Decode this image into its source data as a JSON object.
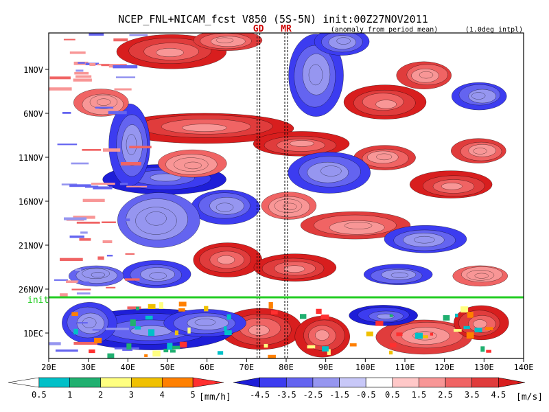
{
  "chart_data": {
    "type": "heatmap",
    "title": "NCEP_FNL+NICAM_fcst V850 (5S-5N) init:00Z27NOV2011",
    "subtitle_left": "(anomaly from period mean)",
    "subtitle_right": "(1.0deg intpl)",
    "markers": [
      {
        "label": "GD",
        "lon": 73,
        "color": "#cc0000"
      },
      {
        "label": "MR",
        "lon": 80,
        "color": "#cc0000"
      }
    ],
    "init_label": "init",
    "init_color": "#22cc22",
    "x": {
      "ticks": [
        "20E",
        "30E",
        "40E",
        "50E",
        "60E",
        "70E",
        "80E",
        "90E",
        "100E",
        "110E",
        "120E",
        "130E",
        "140E"
      ],
      "range": [
        20,
        140
      ]
    },
    "y": {
      "ticks": [
        "1NOV",
        "6NOV",
        "11NOV",
        "16NOV",
        "21NOV",
        "26NOV",
        "1DEC"
      ],
      "range_days": [
        "28OCT2011",
        "5DEC2011"
      ],
      "direction": "time increases downward"
    },
    "precip_colorbar": {
      "unit": "[mm/h]",
      "ticks": [
        "0.5",
        "1",
        "2",
        "3",
        "4",
        "5"
      ],
      "colors": [
        "#ffffff",
        "#00c0c8",
        "#20b070",
        "#ffff80",
        "#f0c000",
        "#ff8000",
        "#ff3030"
      ]
    },
    "wind_colorbar": {
      "unit": "[m/s]",
      "ticks": [
        "-4.5",
        "-3.5",
        "-2.5",
        "-1.5",
        "-0.5",
        "0.5",
        "1.5",
        "2.5",
        "3.5",
        "4.5"
      ],
      "colors": [
        "#1e1ed8",
        "#3c3cf0",
        "#6464f0",
        "#9696f0",
        "#c8c8f8",
        "#ffffff",
        "#ffc8c8",
        "#f89696",
        "#f06464",
        "#e03c3c",
        "#d81e1e"
      ]
    }
  }
}
